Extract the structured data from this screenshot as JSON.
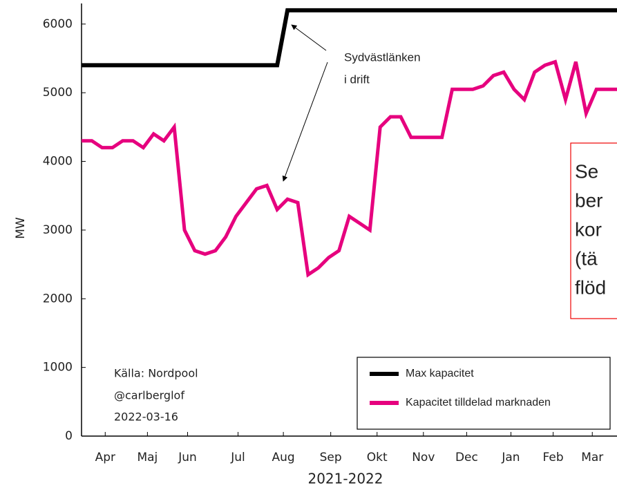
{
  "chart_data": {
    "type": "line",
    "ylabel": "MW",
    "xlabel": "2021-2022",
    "xlim": [
      0,
      52
    ],
    "ylim": [
      0,
      6300
    ],
    "yticks": [
      0,
      1000,
      2000,
      3000,
      4000,
      5000,
      6000
    ],
    "xticks": [
      {
        "value": 2.3,
        "label": "Apr"
      },
      {
        "value": 6.4,
        "label": "Maj"
      },
      {
        "value": 10.3,
        "label": "Jun"
      },
      {
        "value": 15.2,
        "label": "Jul"
      },
      {
        "value": 19.6,
        "label": "Aug"
      },
      {
        "value": 24.2,
        "label": "Sep"
      },
      {
        "value": 28.7,
        "label": "Okt"
      },
      {
        "value": 33.2,
        "label": "Nov"
      },
      {
        "value": 37.4,
        "label": "Dec"
      },
      {
        "value": 41.7,
        "label": "Jan"
      },
      {
        "value": 45.8,
        "label": "Feb"
      },
      {
        "value": 49.6,
        "label": "Mar"
      }
    ],
    "x": [
      0,
      1,
      2,
      3,
      4,
      5,
      6,
      7,
      8,
      9,
      10,
      11,
      12,
      13,
      14,
      15,
      16,
      17,
      18,
      19,
      20,
      21,
      22,
      23,
      24,
      25,
      26,
      27,
      28,
      29,
      30,
      31,
      32,
      33,
      34,
      35,
      36,
      37,
      38,
      39,
      40,
      41,
      42,
      43,
      44,
      45,
      46,
      47,
      48,
      49,
      50,
      51,
      52
    ],
    "series": [
      {
        "name": "Max kapacitet",
        "color": "#000000",
        "values": [
          5400,
          5400,
          5400,
          5400,
          5400,
          5400,
          5400,
          5400,
          5400,
          5400,
          5400,
          5400,
          5400,
          5400,
          5400,
          5400,
          5400,
          5400,
          5400,
          5400,
          6200,
          6200,
          6200,
          6200,
          6200,
          6200,
          6200,
          6200,
          6200,
          6200,
          6200,
          6200,
          6200,
          6200,
          6200,
          6200,
          6200,
          6200,
          6200,
          6200,
          6200,
          6200,
          6200,
          6200,
          6200,
          6200,
          6200,
          6200,
          6200,
          6200,
          6200,
          6200,
          6200
        ]
      },
      {
        "name": "Kapacitet tilldelad marknaden",
        "color": "#e6007e",
        "values": [
          4300,
          4300,
          4200,
          4200,
          4300,
          4300,
          4200,
          4400,
          4300,
          4500,
          3000,
          2700,
          2650,
          2700,
          2900,
          3200,
          3400,
          3600,
          3650,
          3300,
          3450,
          3400,
          2350,
          2450,
          2600,
          2700,
          3200,
          3100,
          3000,
          4500,
          4650,
          4650,
          4350,
          4350,
          4350,
          4350,
          5050,
          5050,
          5050,
          5100,
          5250,
          5300,
          5050,
          4900,
          5300,
          5400,
          5450,
          4900,
          5450,
          4700,
          5050,
          5050,
          5050
        ]
      }
    ],
    "annotations": {
      "arrow_text": [
        "Sydvästlänken",
        "i drift"
      ],
      "source": [
        "Källa: Nordpool",
        "@carlberglof",
        "2022-03-16"
      ],
      "box_text": [
        "Se",
        "ber",
        "kor",
        "(tä",
        "flöd"
      ]
    }
  }
}
